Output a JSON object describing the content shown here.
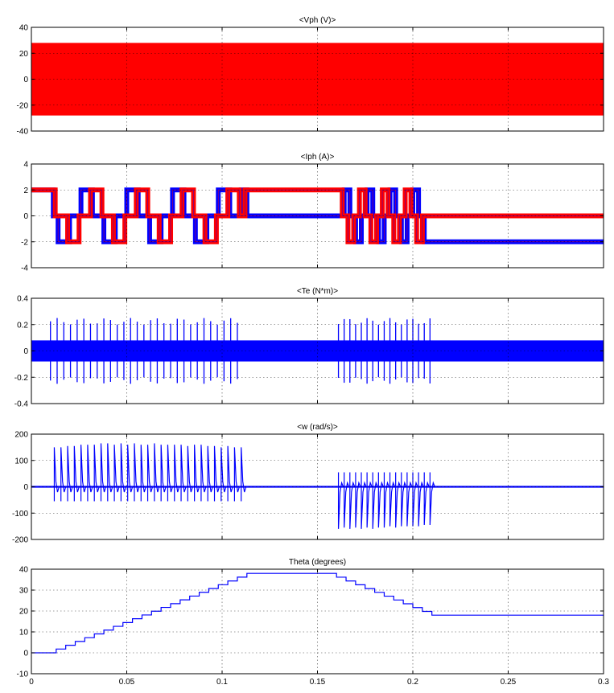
{
  "colors": {
    "red": "#ff0000",
    "blue": "#0000ff",
    "axis": "#000000",
    "background": "#ffffff"
  },
  "chart_data": [
    {
      "type": "line",
      "title": "<Vph (V)>",
      "xlim": [
        0,
        0.3
      ],
      "ylim": [
        -40,
        40
      ],
      "xticks": [
        0,
        0.05,
        0.1,
        0.15,
        0.2,
        0.25,
        0.3
      ],
      "yticks": [
        -40,
        -20,
        0,
        20,
        40
      ],
      "ytick_labels": [
        "-40",
        "-20",
        "0",
        "20",
        "40"
      ],
      "grid": true,
      "series": [
        {
          "color": "#ff0000",
          "kind": "pwm_band",
          "x_range": [
            0,
            0.3
          ],
          "amplitude": 28
        }
      ]
    },
    {
      "type": "line",
      "title": "<Iph (A)>",
      "xlim": [
        0,
        0.3
      ],
      "ylim": [
        -4,
        4
      ],
      "xticks": [
        0,
        0.05,
        0.1,
        0.15,
        0.2,
        0.25,
        0.3
      ],
      "yticks": [
        -4,
        -2,
        0,
        2,
        4
      ],
      "ytick_labels": [
        "-4",
        "-2",
        "0",
        "2",
        "4"
      ],
      "grid": true,
      "series": [
        {
          "color": "#0000ff",
          "kind": "phase_current",
          "x": [
            0,
            0.0085,
            0.0115,
            0.014,
            0.0175,
            0.02,
            0.0235,
            0.026,
            0.0295,
            0.032,
            0.0355,
            0.038,
            0.0415,
            0.044,
            0.0475,
            0.05,
            0.0535,
            0.056,
            0.0595,
            0.062,
            0.0655,
            0.068,
            0.0715,
            0.074,
            0.0775,
            0.08,
            0.0835,
            0.086,
            0.0895,
            0.092,
            0.0955,
            0.098,
            0.1015,
            0.104,
            0.1075,
            0.11,
            0.113,
            0.161,
            0.164,
            0.167,
            0.17,
            0.173,
            0.176,
            0.179,
            0.182,
            0.185,
            0.188,
            0.191,
            0.194,
            0.197,
            0.2,
            0.203,
            0.206,
            0.209,
            0.3
          ],
          "y": [
            2,
            2,
            0,
            -2,
            -2,
            0,
            0,
            2,
            2,
            0,
            0,
            -2,
            -2,
            0,
            0,
            2,
            2,
            0,
            0,
            -2,
            -2,
            0,
            0,
            2,
            2,
            0,
            0,
            -2,
            -2,
            0,
            0,
            2,
            2,
            0,
            0,
            2,
            0,
            0,
            2,
            0,
            -2,
            0,
            2,
            0,
            -2,
            0,
            2,
            0,
            -2,
            0,
            2,
            0,
            -2,
            -2,
            -2
          ]
        },
        {
          "color": "#ff0000",
          "kind": "phase_current",
          "x": [
            0,
            0.0095,
            0.0125,
            0.016,
            0.019,
            0.0215,
            0.025,
            0.0275,
            0.031,
            0.0335,
            0.037,
            0.0395,
            0.043,
            0.0455,
            0.049,
            0.0515,
            0.055,
            0.0575,
            0.061,
            0.0635,
            0.067,
            0.0695,
            0.073,
            0.0755,
            0.079,
            0.0815,
            0.085,
            0.0875,
            0.091,
            0.0935,
            0.097,
            0.0995,
            0.103,
            0.1055,
            0.109,
            0.112,
            0.16,
            0.163,
            0.166,
            0.169,
            0.172,
            0.175,
            0.178,
            0.181,
            0.184,
            0.187,
            0.19,
            0.193,
            0.196,
            0.199,
            0.202,
            0.205,
            0.208,
            0.211,
            0.3
          ],
          "y": [
            2,
            2,
            0,
            0,
            -2,
            -2,
            0,
            0,
            2,
            2,
            0,
            0,
            -2,
            -2,
            0,
            0,
            2,
            2,
            0,
            0,
            -2,
            -2,
            0,
            0,
            2,
            2,
            0,
            0,
            -2,
            -2,
            0,
            0,
            2,
            2,
            0,
            2,
            2,
            0,
            -2,
            0,
            2,
            0,
            -2,
            0,
            2,
            0,
            -2,
            0,
            2,
            0,
            -2,
            0,
            0,
            0,
            0
          ]
        }
      ]
    },
    {
      "type": "line",
      "title": "<Te (N*m)>",
      "xlim": [
        0,
        0.3
      ],
      "ylim": [
        -0.4,
        0.4
      ],
      "xticks": [
        0,
        0.05,
        0.1,
        0.15,
        0.2,
        0.25,
        0.3
      ],
      "yticks": [
        -0.4,
        -0.2,
        0,
        0.2,
        0.4
      ],
      "ytick_labels": [
        "-0.4",
        "-0.2",
        "0",
        "0.2",
        "0.4"
      ],
      "grid": true,
      "series": [
        {
          "color": "#0000ff",
          "kind": "torque_ripple",
          "band": [
            -0.08,
            0.08
          ],
          "band_x_range": [
            0,
            0.3
          ],
          "spike_amplitude": 0.25,
          "spikes_x": [
            0.01,
            0.0135,
            0.017,
            0.0205,
            0.024,
            0.0275,
            0.031,
            0.0345,
            0.038,
            0.0415,
            0.045,
            0.0485,
            0.052,
            0.0555,
            0.059,
            0.0625,
            0.066,
            0.0695,
            0.073,
            0.0765,
            0.08,
            0.0835,
            0.087,
            0.0905,
            0.094,
            0.0975,
            0.101,
            0.1045,
            0.108,
            0.161,
            0.164,
            0.167,
            0.17,
            0.173,
            0.176,
            0.179,
            0.182,
            0.185,
            0.188,
            0.191,
            0.194,
            0.197,
            0.2,
            0.203,
            0.206,
            0.209
          ]
        }
      ]
    },
    {
      "type": "line",
      "title": "<w (rad/s)>",
      "xlim": [
        0,
        0.3
      ],
      "ylim": [
        -200,
        200
      ],
      "xticks": [
        0,
        0.05,
        0.1,
        0.15,
        0.2,
        0.25,
        0.3
      ],
      "yticks": [
        -200,
        -100,
        0,
        100,
        200
      ],
      "ytick_labels": [
        "-200",
        "-100",
        "0",
        "100",
        "200"
      ],
      "grid": true,
      "series": [
        {
          "color": "#0000ff",
          "kind": "speed_spikes",
          "spikes_x": [
            0.012,
            0.0155,
            0.019,
            0.0225,
            0.026,
            0.0295,
            0.033,
            0.0365,
            0.04,
            0.0435,
            0.047,
            0.0505,
            0.054,
            0.0575,
            0.061,
            0.0645,
            0.068,
            0.0715,
            0.075,
            0.0785,
            0.082,
            0.0855,
            0.089,
            0.0925,
            0.096,
            0.0995,
            0.103,
            0.1065,
            0.11
          ],
          "spikes_peak": [
            150,
            150,
            155,
            155,
            160,
            160,
            160,
            165,
            165,
            160,
            165,
            160,
            165,
            160,
            160,
            165,
            160,
            160,
            160,
            160,
            155,
            160,
            160,
            155,
            155,
            150,
            155,
            150,
            150
          ],
          "spikes_x_neg": [
            0.161,
            0.164,
            0.167,
            0.17,
            0.173,
            0.176,
            0.179,
            0.182,
            0.185,
            0.188,
            0.191,
            0.194,
            0.197,
            0.2,
            0.203,
            0.206,
            0.209
          ],
          "spikes_peak_neg": [
            -160,
            -155,
            -160,
            -155,
            -160,
            -155,
            -160,
            -155,
            -155,
            -150,
            -155,
            -150,
            -150,
            -150,
            -150,
            -145,
            -145
          ]
        }
      ]
    },
    {
      "type": "line",
      "title": "Theta (degrees)",
      "xlim": [
        0,
        0.3
      ],
      "ylim": [
        -10,
        40
      ],
      "xticks": [
        0,
        0.05,
        0.1,
        0.15,
        0.2,
        0.25,
        0.3
      ],
      "xtick_labels": [
        "0",
        "0.05",
        "0.1",
        "0.15",
        "0.2",
        "0.25",
        "0.3"
      ],
      "yticks": [
        -10,
        0,
        10,
        20,
        30,
        40
      ],
      "ytick_labels": [
        "-10",
        "0",
        "10",
        "20",
        "30",
        "40"
      ],
      "grid": true,
      "series": [
        {
          "color": "#0000ff",
          "kind": "staircase",
          "x": [
            0,
            0.008,
            0.113,
            0.155,
            0.21,
            0.3
          ],
          "y": [
            0,
            0,
            38,
            38,
            18,
            18
          ],
          "step_deg": 1.8
        }
      ]
    }
  ]
}
